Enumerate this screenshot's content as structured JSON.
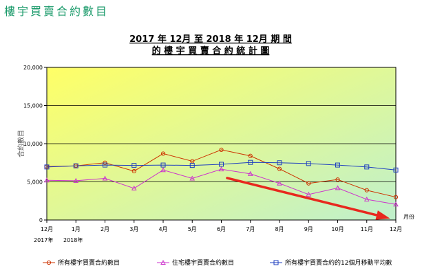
{
  "page_heading": "樓宇買賣合約數目",
  "chart_data": {
    "type": "line",
    "title_lines": [
      "2017 年 12月 至 2018 年 12月 期 間",
      "的 樓 宇 買 賣 合 約 統 計 圖"
    ],
    "ylabel": "合約數目",
    "xlabel": "月份",
    "categories": [
      "12月",
      "1月",
      "2月",
      "3月",
      "4月",
      "5月",
      "6月",
      "7月",
      "8月",
      "9月",
      "10月",
      "11月",
      "12月"
    ],
    "year_labels": [
      "2017年",
      "2018年"
    ],
    "yticks": [
      "0",
      "5,000",
      "10,000",
      "15,000",
      "20,000"
    ],
    "ylim": [
      0,
      20000
    ],
    "grid": true,
    "series": [
      {
        "name": "所有樓宇買賣合約數目",
        "color": "#cc3300",
        "marker": "circle",
        "values": [
          7000,
          7100,
          7500,
          6400,
          8700,
          7700,
          9200,
          8400,
          6700,
          4800,
          5300,
          3900,
          3000
        ]
      },
      {
        "name": "住宅樓宇買賣合約數目",
        "color": "#cc33cc",
        "marker": "triangle",
        "values": [
          5200,
          5150,
          5450,
          4150,
          6550,
          5450,
          6650,
          6050,
          4800,
          3350,
          4200,
          2700,
          2050
        ]
      },
      {
        "name": "所有樓宇買賣合約的12個月移動平均數",
        "color": "#1f3fbf",
        "marker": "square",
        "values": [
          6950,
          7100,
          7200,
          7150,
          7200,
          7150,
          7300,
          7550,
          7500,
          7400,
          7200,
          6950,
          6550
        ]
      }
    ],
    "annotation": {
      "type": "arrow",
      "color": "#e8281e",
      "from": [
        6.2,
        5500
      ],
      "to": [
        11.8,
        200
      ]
    }
  }
}
